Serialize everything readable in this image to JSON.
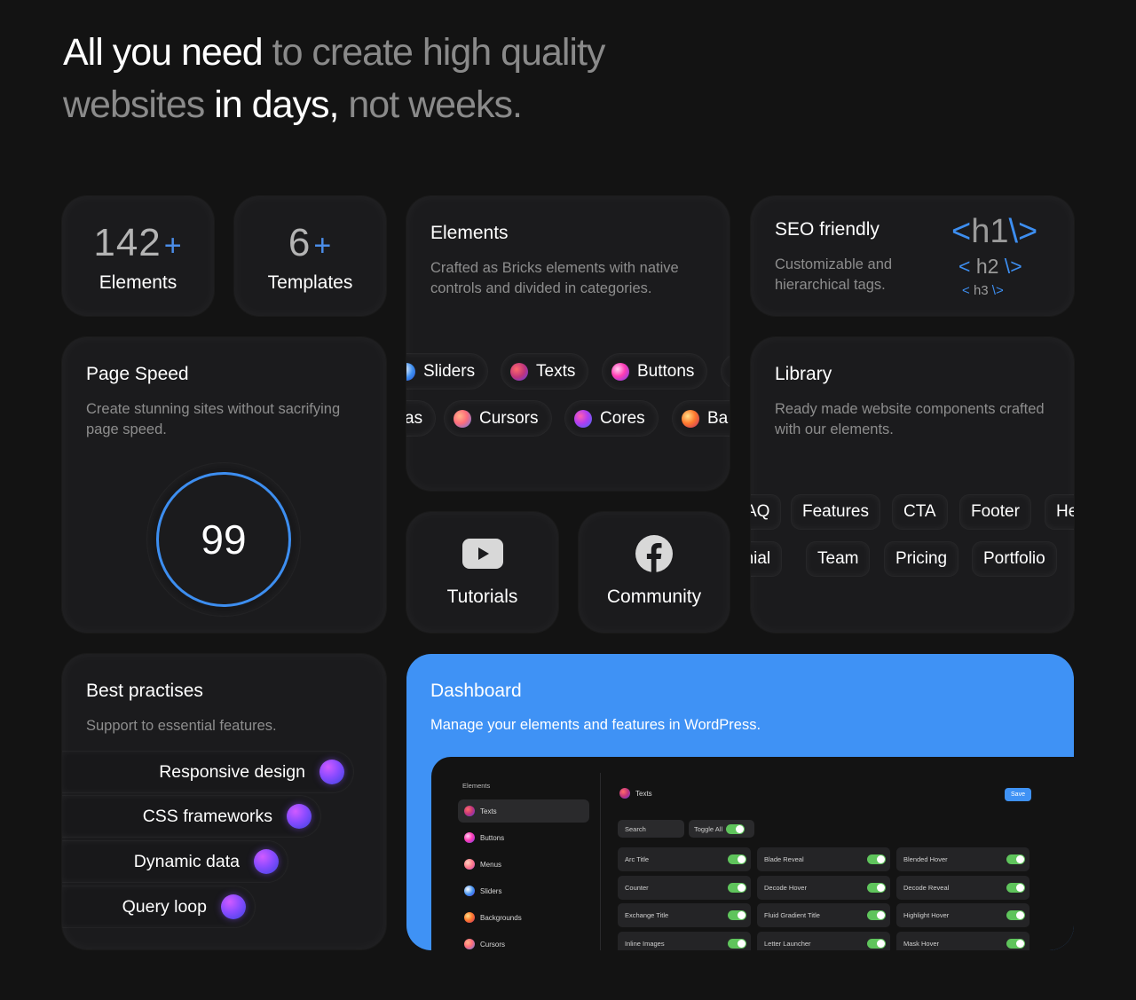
{
  "headline": {
    "part1": "All you need",
    "part2": " to create high quality",
    "part3": "websites",
    "part4": " in days,",
    "part5": " not weeks."
  },
  "stats": [
    {
      "number": "142",
      "plus": "+",
      "label": "Elements"
    },
    {
      "number": "6",
      "plus": "+",
      "label": "Templates"
    }
  ],
  "elements_card": {
    "title": "Elements",
    "subtitle_line1": "Crafted as Bricks elements with native",
    "subtitle_line2": "controls and divided in categories.",
    "row1": [
      "Sliders",
      "Texts",
      "Buttons"
    ],
    "row2": [
      "as",
      "Cursors",
      "Cores",
      "Ba"
    ]
  },
  "seo_card": {
    "title": "SEO friendly",
    "subtitle_line1": "Customizable and",
    "subtitle_line2": "hierarchical tags.",
    "h1": "h1",
    "h2": "h2",
    "h3": "h3"
  },
  "speed_card": {
    "title": "Page Speed",
    "subtitle_line1": "Create stunning sites without sacrifying",
    "subtitle_line2": "page speed.",
    "score": "99"
  },
  "library_card": {
    "title": "Library",
    "subtitle_line1": "Ready made website components crafted",
    "subtitle_line2": "with our elements.",
    "row1": [
      "AQ",
      "Features",
      "CTA",
      "Footer",
      "He"
    ],
    "row2": [
      "onial",
      "Team",
      "Pricing",
      "Portfolio"
    ]
  },
  "tutorials": {
    "label": "Tutorials",
    "icon": "youtube-icon"
  },
  "community": {
    "label": "Community",
    "icon": "facebook-icon"
  },
  "best_practises": {
    "title": "Best practises",
    "subtitle": "Support to essential features.",
    "items": [
      "Responsive design",
      "CSS frameworks",
      "Dynamic data",
      "Query loop"
    ]
  },
  "dashboard": {
    "title": "Dashboard",
    "subtitle": "Manage your elements and features in WordPress.",
    "sidebar_label": "Elements",
    "sidebar_items": [
      "Texts",
      "Buttons",
      "Menus",
      "Sliders",
      "Backgrounds",
      "Cursors"
    ],
    "main_title": "Texts",
    "save_label": "Save",
    "search_placeholder": "Search",
    "toggle_all_label": "Toggle All",
    "features": [
      [
        "Arc Title",
        "Blade Reveal",
        "Blended Hover"
      ],
      [
        "Counter",
        "Decode Hover",
        "Decode Reveal"
      ],
      [
        "Exchange Title",
        "Fluid Gradient Title",
        "Highlight Hover"
      ],
      [
        "Inline Images",
        "Letter Launcher",
        "Mask Hover"
      ]
    ]
  },
  "colors": {
    "background": "#131313",
    "card": "#1b1b1d",
    "accent_blue": "#3f92f5",
    "toggle_green": "#5fc45c",
    "muted_text": "#8d8d8d"
  }
}
